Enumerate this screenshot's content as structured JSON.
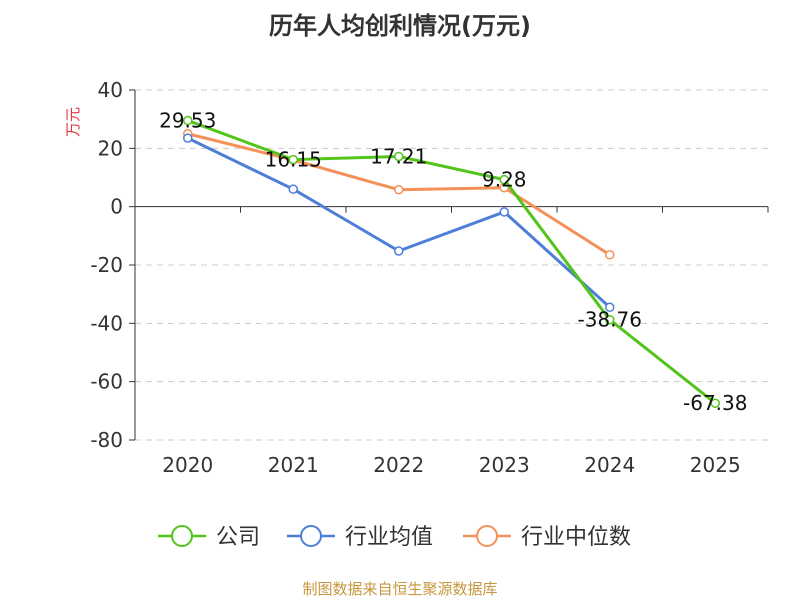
{
  "chart_data": {
    "type": "line",
    "title": "历年人均创利情况(万元)",
    "ylabel": "万元",
    "xlabel": "",
    "categories": [
      "2020",
      "2021",
      "2022",
      "2023",
      "2024",
      "2025"
    ],
    "ylim": [
      -80,
      40
    ],
    "yticks": [
      40,
      20,
      0,
      -20,
      -40,
      -60,
      -80
    ],
    "grid": true,
    "legend_position": "bottom",
    "series": [
      {
        "name": "公司",
        "color": "#52c41a",
        "values": [
          29.53,
          16.15,
          17.21,
          9.28,
          -38.76,
          -67.38
        ],
        "labels": [
          "29.53",
          "16.15",
          "17.21",
          "9.28",
          "-38.76",
          "-67.38"
        ]
      },
      {
        "name": "行业均值",
        "color": "#4e7fd8",
        "values": [
          23.5,
          6.0,
          -15.2,
          -1.8,
          -34.5,
          null
        ]
      },
      {
        "name": "行业中位数",
        "color": "#f4915a",
        "values": [
          25.0,
          16.0,
          5.8,
          6.5,
          -16.5,
          null
        ]
      }
    ],
    "source": "制图数据来自恒生聚源数据库"
  }
}
